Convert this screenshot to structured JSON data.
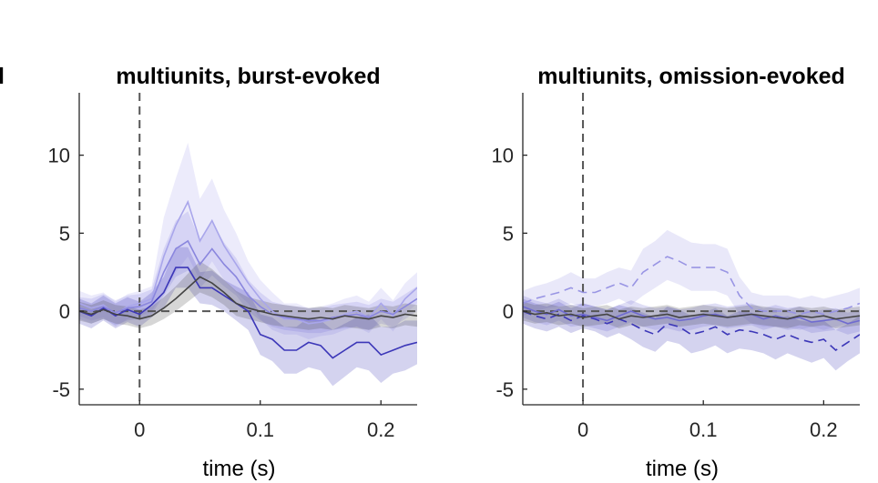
{
  "panel_prefix": "l",
  "chart_data": [
    {
      "type": "line",
      "title": "multiunits, burst-evoked",
      "xlabel": "time (s)",
      "ylabel": "",
      "xlim": [
        -0.05,
        0.23
      ],
      "ylim": [
        -6,
        14
      ],
      "xticks": [
        0,
        0.1,
        0.2
      ],
      "xtick_labels": [
        "0",
        "0.1",
        "0.2"
      ],
      "yticks": [
        -5,
        0,
        5,
        10
      ],
      "ytick_labels": [
        "-5",
        "0",
        "5",
        "10"
      ],
      "grid": false,
      "legend": "none",
      "reference_lines": {
        "vertical_x": 0,
        "horizontal_y": 0
      },
      "x": [
        -0.05,
        -0.04,
        -0.03,
        -0.02,
        -0.01,
        0.0,
        0.01,
        0.02,
        0.03,
        0.04,
        0.05,
        0.06,
        0.07,
        0.08,
        0.09,
        0.1,
        0.11,
        0.12,
        0.13,
        0.14,
        0.15,
        0.16,
        0.17,
        0.18,
        0.19,
        0.2,
        0.21,
        0.22,
        0.23
      ],
      "series": [
        {
          "color": "#a9a6eb",
          "line_style": "solid",
          "values": [
            0.5,
            0.2,
            0.4,
            -0.2,
            0.3,
            0.5,
            0.8,
            3.5,
            5.5,
            7.0,
            4.5,
            5.8,
            4.2,
            3.0,
            1.8,
            0.8,
            0.0,
            -0.5,
            -0.5,
            -0.8,
            -0.7,
            -0.5,
            -0.2,
            0.0,
            -0.4,
            0.5,
            -0.3,
            0.8,
            1.5
          ],
          "lower": [
            -0.3,
            -0.6,
            -0.4,
            -1.0,
            -0.5,
            -0.3,
            0.0,
            1.2,
            2.5,
            3.5,
            2.0,
            3.2,
            2.0,
            1.2,
            0.5,
            -0.5,
            -1.2,
            -1.5,
            -1.5,
            -1.8,
            -1.6,
            -1.5,
            -1.2,
            -1.0,
            -1.4,
            -0.5,
            -1.3,
            -0.2,
            0.5
          ],
          "upper": [
            1.3,
            1.0,
            1.2,
            0.6,
            1.1,
            1.3,
            1.6,
            6.0,
            8.5,
            10.8,
            7.2,
            8.5,
            6.5,
            5.0,
            3.2,
            2.0,
            1.2,
            0.5,
            0.5,
            0.2,
            0.3,
            0.5,
            0.8,
            1.0,
            0.6,
            1.5,
            0.7,
            1.8,
            2.5
          ]
        },
        {
          "color": "#8a86de",
          "line_style": "solid",
          "values": [
            0.2,
            0.0,
            0.3,
            -0.1,
            0.2,
            0.3,
            0.6,
            2.5,
            4.0,
            4.5,
            3.0,
            4.0,
            3.0,
            2.2,
            1.0,
            0.3,
            -0.2,
            -0.4,
            -0.5,
            -0.6,
            -0.6,
            -0.4,
            -0.3,
            -0.2,
            -0.4,
            0.0,
            -0.2,
            0.3,
            0.8
          ],
          "lower": [
            -0.5,
            -0.8,
            -0.5,
            -0.9,
            -0.6,
            -0.5,
            -0.2,
            1.0,
            2.2,
            2.6,
            1.5,
            2.3,
            1.6,
            1.0,
            0.0,
            -0.6,
            -1.0,
            -1.2,
            -1.3,
            -1.4,
            -1.4,
            -1.2,
            -1.1,
            -1.0,
            -1.2,
            -0.8,
            -1.0,
            -0.5,
            0.0
          ],
          "upper": [
            0.9,
            0.8,
            1.1,
            0.7,
            1.0,
            1.1,
            1.4,
            4.0,
            5.8,
            6.4,
            4.5,
            5.7,
            4.4,
            3.4,
            2.0,
            1.2,
            0.6,
            0.4,
            0.3,
            0.2,
            0.2,
            0.4,
            0.5,
            0.6,
            0.4,
            0.8,
            0.6,
            1.1,
            1.6
          ]
        },
        {
          "color": "#3c37b8",
          "line_style": "solid",
          "values": [
            0.0,
            -0.3,
            0.2,
            -0.3,
            0.1,
            -0.2,
            0.4,
            1.2,
            2.8,
            2.8,
            1.5,
            1.5,
            1.0,
            0.5,
            0.0,
            -1.5,
            -1.8,
            -2.5,
            -2.5,
            -2.0,
            -2.2,
            -3.0,
            -2.5,
            -2.0,
            -2.0,
            -2.8,
            -2.5,
            -2.2,
            -2.0
          ],
          "lower": [
            -0.8,
            -1.1,
            -0.6,
            -1.1,
            -0.7,
            -1.0,
            -0.4,
            0.2,
            1.5,
            1.5,
            0.5,
            0.4,
            0.0,
            -0.6,
            -1.2,
            -2.8,
            -3.2,
            -4.0,
            -4.0,
            -3.6,
            -3.8,
            -4.8,
            -4.2,
            -3.6,
            -3.8,
            -4.6,
            -4.0,
            -3.8,
            -3.4
          ],
          "upper": [
            0.8,
            0.5,
            1.0,
            0.5,
            0.9,
            0.6,
            1.2,
            2.2,
            4.1,
            4.1,
            2.5,
            2.6,
            2.0,
            1.6,
            1.2,
            -0.2,
            -0.4,
            -1.0,
            -1.0,
            -0.4,
            -0.6,
            -1.2,
            -0.8,
            -0.4,
            -0.2,
            -1.0,
            -1.0,
            -0.6,
            -0.6
          ]
        },
        {
          "color": "#444444",
          "line_style": "solid",
          "values": [
            0.0,
            -0.2,
            0.1,
            -0.2,
            -0.3,
            -0.5,
            -0.3,
            0.2,
            0.8,
            1.5,
            2.2,
            1.8,
            1.2,
            0.5,
            0.2,
            0.0,
            -0.2,
            -0.3,
            -0.4,
            -0.5,
            -0.4,
            -0.5,
            -0.3,
            -0.4,
            -0.5,
            -0.3,
            -0.4,
            -0.2,
            -0.3
          ],
          "lower": [
            -0.6,
            -0.8,
            -0.5,
            -0.8,
            -0.9,
            -1.1,
            -0.9,
            -0.5,
            0.0,
            0.6,
            1.2,
            0.9,
            0.4,
            -0.3,
            -0.5,
            -0.7,
            -0.9,
            -1.0,
            -1.1,
            -1.2,
            -1.1,
            -1.2,
            -1.0,
            -1.1,
            -1.2,
            -1.0,
            -1.1,
            -0.9,
            -1.0
          ],
          "upper": [
            0.6,
            0.4,
            0.7,
            0.4,
            0.3,
            0.1,
            0.3,
            0.9,
            1.6,
            2.4,
            3.2,
            2.7,
            2.0,
            1.3,
            0.9,
            0.7,
            0.5,
            0.4,
            0.3,
            0.2,
            0.3,
            0.2,
            0.4,
            0.3,
            0.2,
            0.4,
            0.3,
            0.5,
            0.4
          ]
        }
      ]
    },
    {
      "type": "line",
      "title": "multiunits, omission-evoked",
      "xlabel": "time (s)",
      "ylabel": "",
      "xlim": [
        -0.05,
        0.23
      ],
      "ylim": [
        -6,
        14
      ],
      "xticks": [
        0,
        0.1,
        0.2
      ],
      "xtick_labels": [
        "0",
        "0.1",
        "0.2"
      ],
      "yticks": [
        -5,
        0,
        5,
        10
      ],
      "ytick_labels": [
        "-5",
        "0",
        "5",
        "10"
      ],
      "grid": false,
      "legend": "none",
      "reference_lines": {
        "vertical_x": 0,
        "horizontal_y": 0
      },
      "x": [
        -0.05,
        -0.04,
        -0.03,
        -0.02,
        -0.01,
        0.0,
        0.01,
        0.02,
        0.03,
        0.04,
        0.05,
        0.06,
        0.07,
        0.08,
        0.09,
        0.1,
        0.11,
        0.12,
        0.13,
        0.14,
        0.15,
        0.16,
        0.17,
        0.18,
        0.19,
        0.2,
        0.21,
        0.22,
        0.23
      ],
      "series": [
        {
          "color": "#9995e4",
          "line_style": "dashed",
          "values": [
            0.5,
            0.8,
            1.0,
            1.2,
            1.5,
            1.2,
            1.2,
            1.5,
            1.8,
            1.5,
            2.5,
            3.0,
            3.5,
            3.2,
            2.8,
            2.8,
            2.8,
            2.5,
            1.0,
            0.2,
            0.0,
            0.0,
            0.0,
            -0.2,
            0.0,
            -0.2,
            0.0,
            0.2,
            0.5
          ],
          "lower": [
            -0.3,
            0.0,
            0.2,
            0.3,
            0.5,
            0.3,
            0.3,
            0.5,
            0.8,
            0.4,
            1.0,
            1.5,
            2.0,
            1.7,
            1.3,
            1.3,
            1.3,
            1.0,
            -0.2,
            -0.8,
            -1.0,
            -1.0,
            -1.0,
            -1.2,
            -1.0,
            -1.2,
            -1.0,
            -0.8,
            -0.5
          ],
          "upper": [
            1.3,
            1.6,
            1.8,
            2.1,
            2.5,
            2.1,
            2.1,
            2.5,
            2.8,
            2.6,
            4.0,
            4.5,
            5.2,
            4.8,
            4.4,
            4.3,
            4.3,
            4.0,
            2.2,
            1.2,
            1.0,
            1.0,
            1.0,
            0.8,
            1.0,
            0.8,
            1.0,
            1.2,
            1.5
          ]
        },
        {
          "color": "#3c37b8",
          "line_style": "dashed",
          "values": [
            0.0,
            -0.3,
            -0.5,
            -0.2,
            -0.6,
            -0.3,
            -0.5,
            -0.8,
            -0.5,
            -0.8,
            -1.2,
            -1.5,
            -0.8,
            -1.0,
            -1.5,
            -1.3,
            -1.0,
            -1.5,
            -1.2,
            -1.3,
            -1.5,
            -1.8,
            -1.5,
            -1.8,
            -2.0,
            -1.8,
            -2.5,
            -2.0,
            -1.5
          ],
          "lower": [
            -0.8,
            -1.1,
            -1.3,
            -1.0,
            -1.4,
            -1.1,
            -1.3,
            -1.7,
            -1.4,
            -1.8,
            -2.3,
            -2.6,
            -1.9,
            -2.1,
            -2.7,
            -2.5,
            -2.2,
            -2.7,
            -2.4,
            -2.5,
            -2.7,
            -3.1,
            -2.7,
            -3.0,
            -3.3,
            -3.0,
            -3.8,
            -3.2,
            -2.7
          ],
          "upper": [
            0.8,
            0.5,
            0.3,
            0.6,
            0.2,
            0.5,
            0.3,
            0.1,
            0.4,
            0.2,
            -0.1,
            -0.4,
            0.3,
            0.1,
            -0.3,
            -0.1,
            0.2,
            -0.3,
            0.0,
            -0.1,
            -0.3,
            -0.5,
            -0.3,
            -0.6,
            -0.7,
            -0.6,
            -1.2,
            -0.8,
            -0.3
          ]
        },
        {
          "color": "#6f6bd0",
          "line_style": "solid",
          "values": [
            0.3,
            0.0,
            -0.2,
            0.1,
            -0.3,
            -0.2,
            -0.4,
            -0.6,
            -0.3,
            0.0,
            -0.3,
            -0.5,
            -0.4,
            -0.6,
            -0.5,
            -0.3,
            -0.2,
            -0.4,
            -0.3,
            -0.2,
            -0.5,
            -0.3,
            -0.5,
            -0.4,
            -0.7,
            -0.6,
            -0.5,
            -0.8,
            -0.6
          ],
          "lower": [
            -0.4,
            -0.7,
            -0.9,
            -0.6,
            -1.0,
            -0.9,
            -1.1,
            -1.3,
            -1.0,
            -0.7,
            -1.0,
            -1.2,
            -1.1,
            -1.3,
            -1.2,
            -1.0,
            -0.9,
            -1.1,
            -1.0,
            -0.9,
            -1.2,
            -1.0,
            -1.2,
            -1.1,
            -1.4,
            -1.3,
            -1.2,
            -1.5,
            -1.3
          ],
          "upper": [
            1.0,
            0.7,
            0.5,
            0.8,
            0.4,
            0.5,
            0.3,
            0.1,
            0.4,
            0.7,
            0.4,
            0.2,
            0.3,
            0.1,
            0.2,
            0.4,
            0.5,
            0.3,
            0.4,
            0.5,
            0.2,
            0.4,
            0.2,
            0.3,
            0.0,
            0.1,
            0.2,
            -0.1,
            0.1
          ]
        },
        {
          "color": "#444444",
          "line_style": "solid",
          "values": [
            0.0,
            -0.2,
            -0.1,
            -0.3,
            -0.2,
            -0.4,
            -0.3,
            -0.2,
            -0.5,
            -0.3,
            -0.4,
            -0.3,
            -0.2,
            -0.4,
            -0.3,
            -0.2,
            -0.3,
            -0.4,
            -0.3,
            -0.2,
            -0.3,
            -0.4,
            -0.5,
            -0.3,
            -0.4,
            -0.3,
            -0.5,
            -0.4,
            -0.3
          ],
          "lower": [
            -0.6,
            -0.8,
            -0.7,
            -0.9,
            -0.8,
            -1.0,
            -0.9,
            -0.8,
            -1.1,
            -0.9,
            -1.0,
            -0.9,
            -0.8,
            -1.0,
            -0.9,
            -0.8,
            -0.9,
            -1.0,
            -0.9,
            -0.8,
            -0.9,
            -1.0,
            -1.1,
            -0.9,
            -1.0,
            -0.9,
            -1.1,
            -1.0,
            -0.9
          ],
          "upper": [
            0.6,
            0.4,
            0.5,
            0.3,
            0.4,
            0.2,
            0.3,
            0.4,
            0.1,
            0.3,
            0.2,
            0.3,
            0.4,
            0.2,
            0.3,
            0.4,
            0.3,
            0.2,
            0.3,
            0.4,
            0.3,
            0.2,
            0.1,
            0.3,
            0.2,
            0.3,
            0.1,
            0.2,
            0.3
          ]
        }
      ]
    }
  ]
}
